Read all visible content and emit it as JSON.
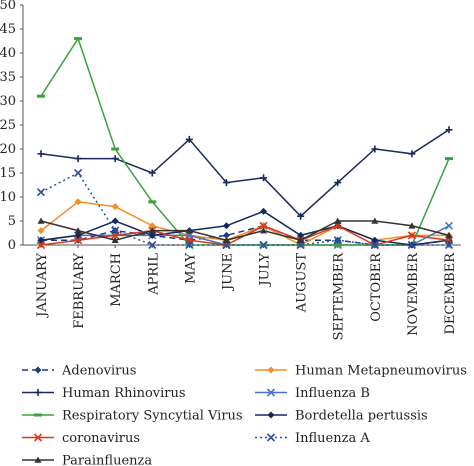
{
  "chart_data": {
    "type": "line",
    "categories": [
      "JANUARY",
      "FEBRUARY",
      "MARCH",
      "APRIL",
      "MAY",
      "JUNE",
      "JULY",
      "AUGUST",
      "SEPTEMBER",
      "OCTOBER",
      "NOVEMBER",
      "DECEMBER"
    ],
    "ylim": [
      0,
      50
    ],
    "yticks": [
      0,
      5,
      10,
      15,
      20,
      25,
      30,
      35,
      40,
      45,
      50
    ],
    "grid": false,
    "legend_position": "bottom",
    "series": [
      {
        "name": "Adenovirus",
        "color": "#1f3a7a",
        "dash": "6,4",
        "marker": "diamond",
        "values": [
          1,
          1,
          3,
          2,
          1,
          2,
          4,
          1,
          1,
          0,
          0,
          1
        ]
      },
      {
        "name": "Human Metapneumovirus",
        "color": "#f0902a",
        "dash": "",
        "marker": "diamond",
        "values": [
          3,
          9,
          8,
          4,
          2,
          1,
          4,
          0,
          4,
          1,
          2,
          2
        ]
      },
      {
        "name": "Human Rhinovirus",
        "color": "#1b2a5a",
        "dash": "",
        "marker": "plus",
        "values": [
          19,
          18,
          18,
          15,
          22,
          13,
          14,
          6,
          13,
          20,
          19,
          24
        ]
      },
      {
        "name": "Influenza B",
        "color": "#4a72c4",
        "dash": "",
        "marker": "x",
        "values": [
          1,
          2,
          2,
          2,
          2,
          0,
          0,
          0,
          0,
          0,
          0,
          4
        ]
      },
      {
        "name": "Respiratory Syncytial Virus",
        "color": "#3aa33a",
        "dash": "",
        "marker": "dash",
        "values": [
          31,
          43,
          20,
          9,
          0,
          0,
          0,
          0,
          0,
          0,
          0,
          18
        ]
      },
      {
        "name": "Bordetella pertussis",
        "color": "#16285a",
        "dash": "",
        "marker": "diamond",
        "values": [
          1,
          2,
          5,
          2,
          3,
          4,
          7,
          2,
          4,
          1,
          0,
          1
        ]
      },
      {
        "name": "coronavirus",
        "color": "#d9391b",
        "dash": "",
        "marker": "x",
        "values": [
          0,
          1,
          2,
          3,
          1,
          0,
          4,
          1,
          4,
          0,
          2,
          1
        ]
      },
      {
        "name": "Influenza A",
        "color": "#2d4fa0",
        "dash": "2,3",
        "marker": "x",
        "values": [
          11,
          15,
          3,
          0,
          0,
          0,
          0,
          0,
          1,
          0,
          0,
          0
        ]
      },
      {
        "name": "Parainfluenza",
        "color": "#333333",
        "dash": "",
        "marker": "triangle",
        "values": [
          5,
          3,
          1,
          3,
          3,
          1,
          3,
          1,
          5,
          5,
          4,
          2
        ]
      }
    ]
  }
}
